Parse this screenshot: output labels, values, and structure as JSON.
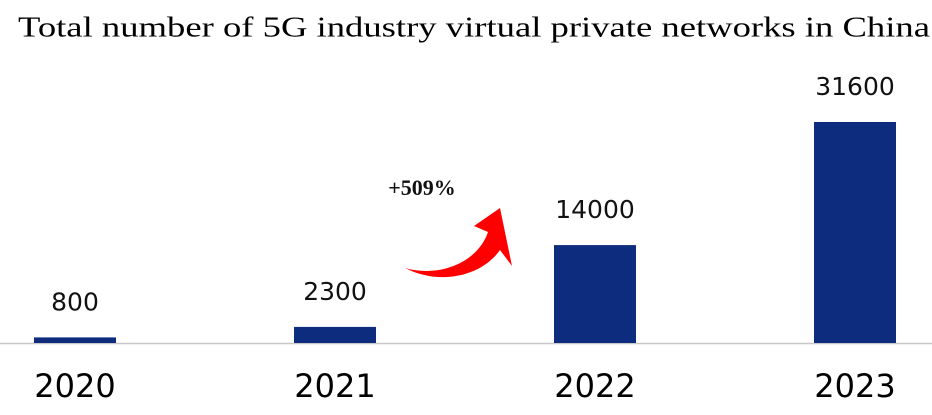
{
  "chart_data": {
    "type": "bar",
    "title": "Total number of 5G industry virtual private networks in China",
    "categories": [
      "2020",
      "2021",
      "2022",
      "2023"
    ],
    "values": [
      800,
      2300,
      14000,
      31600
    ],
    "color": "#0e2c7e",
    "annotation": "+509%"
  }
}
